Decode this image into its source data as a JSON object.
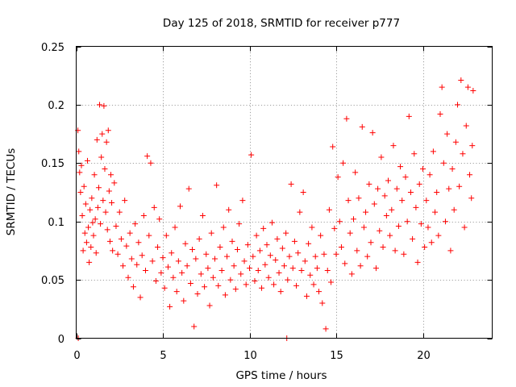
{
  "chart_data": {
    "type": "scatter",
    "title": "Day 125 of 2018, SRMTID for receiver p777",
    "xlabel": "GPS time / hours",
    "ylabel": "SRMTID / TECUs",
    "xlim": [
      0,
      24
    ],
    "ylim": [
      0,
      0.25
    ],
    "xticks": [
      0,
      5,
      10,
      15,
      20
    ],
    "xtick_labels": [
      "0",
      "5",
      "10",
      "15",
      "20"
    ],
    "yticks": [
      0,
      0.05,
      0.1,
      0.15,
      0.2,
      0.25
    ],
    "ytick_labels": [
      "0",
      "0.05",
      "0.1",
      "0.15",
      "0.2",
      "0.25"
    ],
    "grid": true,
    "marker": "+",
    "color": "#ff0000",
    "series": [
      {
        "name": "SRMTID",
        "points": [
          [
            0.1,
            0.178
          ],
          [
            0.15,
            0.16
          ],
          [
            0.2,
            0.142
          ],
          [
            0.25,
            0.125
          ],
          [
            0.3,
            0.148
          ],
          [
            0.35,
            0.105
          ],
          [
            0.4,
            0.075
          ],
          [
            0.45,
            0.13
          ],
          [
            0.5,
            0.09
          ],
          [
            0.55,
            0.115
          ],
          [
            0.6,
            0.082
          ],
          [
            0.65,
            0.152
          ],
          [
            0.7,
            0.095
          ],
          [
            0.75,
            0.065
          ],
          [
            0.8,
            0.11
          ],
          [
            0.85,
            0.078
          ],
          [
            0.9,
            0.12
          ],
          [
            0.95,
            0.099
          ],
          [
            1.0,
            0.088
          ],
          [
            1.05,
            0.14
          ],
          [
            1.1,
            0.102
          ],
          [
            1.15,
            0.073
          ],
          [
            1.2,
            0.17
          ],
          [
            1.25,
            0.112
          ],
          [
            1.3,
            0.129
          ],
          [
            1.35,
            0.2
          ],
          [
            1.4,
            0.098
          ],
          [
            1.45,
            0.155
          ],
          [
            1.5,
            0.175
          ],
          [
            1.55,
            0.118
          ],
          [
            1.6,
            0.199
          ],
          [
            1.65,
            0.145
          ],
          [
            1.7,
            0.108
          ],
          [
            1.75,
            0.168
          ],
          [
            1.8,
            0.093
          ],
          [
            1.85,
            0.178
          ],
          [
            1.9,
            0.126
          ],
          [
            1.95,
            0.083
          ],
          [
            2.0,
            0.14
          ],
          [
            2.05,
            0.116
          ],
          [
            2.1,
            0.075
          ],
          [
            2.2,
            0.133
          ],
          [
            2.3,
            0.096
          ],
          [
            2.4,
            0.072
          ],
          [
            2.5,
            0.108
          ],
          [
            2.6,
            0.085
          ],
          [
            2.7,
            0.062
          ],
          [
            2.8,
            0.118
          ],
          [
            2.9,
            0.079
          ],
          [
            3.0,
            0.052
          ],
          [
            3.1,
            0.09
          ],
          [
            3.2,
            0.068
          ],
          [
            3.3,
            0.044
          ],
          [
            3.4,
            0.098
          ],
          [
            3.5,
            0.063
          ],
          [
            3.6,
            0.082
          ],
          [
            3.7,
            0.035
          ],
          [
            3.8,
            0.071
          ],
          [
            3.9,
            0.105
          ],
          [
            4.0,
            0.058
          ],
          [
            4.1,
            0.156
          ],
          [
            4.2,
            0.088
          ],
          [
            4.3,
            0.15
          ],
          [
            4.4,
            0.066
          ],
          [
            4.5,
            0.112
          ],
          [
            4.6,
            0.049
          ],
          [
            4.7,
            0.078
          ],
          [
            4.8,
            0.102
          ],
          [
            4.9,
            0.056
          ],
          [
            5.0,
            0.069
          ],
          [
            5.1,
            0.043
          ],
          [
            5.2,
            0.088
          ],
          [
            5.3,
            0.061
          ],
          [
            5.4,
            0.027
          ],
          [
            5.5,
            0.073
          ],
          [
            5.6,
            0.052
          ],
          [
            5.7,
            0.095
          ],
          [
            5.8,
            0.04
          ],
          [
            5.9,
            0.066
          ],
          [
            6.0,
            0.113
          ],
          [
            6.1,
            0.056
          ],
          [
            6.2,
            0.032
          ],
          [
            6.3,
            0.081
          ],
          [
            6.4,
            0.062
          ],
          [
            6.5,
            0.128
          ],
          [
            6.6,
            0.047
          ],
          [
            6.7,
            0.076
          ],
          [
            6.8,
            0.01
          ],
          [
            6.9,
            0.068
          ],
          [
            7.0,
            0.038
          ],
          [
            7.1,
            0.085
          ],
          [
            7.2,
            0.055
          ],
          [
            7.3,
            0.105
          ],
          [
            7.4,
            0.044
          ],
          [
            7.5,
            0.072
          ],
          [
            7.6,
            0.06
          ],
          [
            7.7,
            0.028
          ],
          [
            7.8,
            0.09
          ],
          [
            7.9,
            0.052
          ],
          [
            8.0,
            0.068
          ],
          [
            8.1,
            0.131
          ],
          [
            8.2,
            0.045
          ],
          [
            8.3,
            0.078
          ],
          [
            8.4,
            0.058
          ],
          [
            8.5,
            0.095
          ],
          [
            8.6,
            0.037
          ],
          [
            8.7,
            0.07
          ],
          [
            8.8,
            0.11
          ],
          [
            8.9,
            0.05
          ],
          [
            9.0,
            0.083
          ],
          [
            9.1,
            0.062
          ],
          [
            9.2,
            0.042
          ],
          [
            9.3,
            0.076
          ],
          [
            9.4,
            0.098
          ],
          [
            9.5,
            0.055
          ],
          [
            9.6,
            0.118
          ],
          [
            9.7,
            0.066
          ],
          [
            9.8,
            0.046
          ],
          [
            9.9,
            0.08
          ],
          [
            10.0,
            0.06
          ],
          [
            10.1,
            0.157
          ],
          [
            10.2,
            0.07
          ],
          [
            10.3,
            0.049
          ],
          [
            10.4,
            0.088
          ],
          [
            10.5,
            0.058
          ],
          [
            10.6,
            0.075
          ],
          [
            10.7,
            0.043
          ],
          [
            10.8,
            0.094
          ],
          [
            10.9,
            0.063
          ],
          [
            11.0,
            0.08
          ],
          [
            11.1,
            0.052
          ],
          [
            11.2,
            0.071
          ],
          [
            11.3,
            0.099
          ],
          [
            11.4,
            0.046
          ],
          [
            11.5,
            0.067
          ],
          [
            11.6,
            0.085
          ],
          [
            11.7,
            0.056
          ],
          [
            11.8,
            0.04
          ],
          [
            11.9,
            0.077
          ],
          [
            12.0,
            0.062
          ],
          [
            12.1,
            0.09
          ],
          [
            12.2,
            0.05
          ],
          [
            12.3,
            0.07
          ],
          [
            12.4,
            0.132
          ],
          [
            12.5,
            0.06
          ],
          [
            12.6,
            0.083
          ],
          [
            12.7,
            0.045
          ],
          [
            12.8,
            0.073
          ],
          [
            12.9,
            0.108
          ],
          [
            13.0,
            0.058
          ],
          [
            13.1,
            0.125
          ],
          [
            13.2,
            0.066
          ],
          [
            13.3,
            0.036
          ],
          [
            13.4,
            0.081
          ],
          [
            13.5,
            0.054
          ],
          [
            13.6,
            0.095
          ],
          [
            13.7,
            0.046
          ],
          [
            13.8,
            0.07
          ],
          [
            13.9,
            0.06
          ],
          [
            14.0,
            0.04
          ],
          [
            14.1,
            0.088
          ],
          [
            14.2,
            0.03
          ],
          [
            14.3,
            0.072
          ],
          [
            14.4,
            0.008
          ],
          [
            14.5,
            0.058
          ],
          [
            14.6,
            0.11
          ],
          [
            14.7,
            0.048
          ],
          [
            14.8,
            0.164
          ],
          [
            14.9,
            0.094
          ],
          [
            15.0,
            0.072
          ],
          [
            15.1,
            0.138
          ],
          [
            15.2,
            0.1
          ],
          [
            15.3,
            0.078
          ],
          [
            15.4,
            0.15
          ],
          [
            15.5,
            0.064
          ],
          [
            15.6,
            0.188
          ],
          [
            15.7,
            0.118
          ],
          [
            15.8,
            0.09
          ],
          [
            15.9,
            0.055
          ],
          [
            16.0,
            0.102
          ],
          [
            16.1,
            0.142
          ],
          [
            16.2,
            0.075
          ],
          [
            16.3,
            0.12
          ],
          [
            16.4,
            0.062
          ],
          [
            16.5,
            0.181
          ],
          [
            16.6,
            0.095
          ],
          [
            16.7,
            0.108
          ],
          [
            16.8,
            0.07
          ],
          [
            16.9,
            0.132
          ],
          [
            17.0,
            0.082
          ],
          [
            17.1,
            0.176
          ],
          [
            17.2,
            0.115
          ],
          [
            17.3,
            0.06
          ],
          [
            17.4,
            0.128
          ],
          [
            17.5,
            0.092
          ],
          [
            17.6,
            0.155
          ],
          [
            17.7,
            0.078
          ],
          [
            17.8,
            0.122
          ],
          [
            17.9,
            0.105
          ],
          [
            18.0,
            0.135
          ],
          [
            18.1,
            0.088
          ],
          [
            18.2,
            0.11
          ],
          [
            18.3,
            0.165
          ],
          [
            18.4,
            0.075
          ],
          [
            18.5,
            0.128
          ],
          [
            18.6,
            0.096
          ],
          [
            18.7,
            0.147
          ],
          [
            18.8,
            0.118
          ],
          [
            18.9,
            0.072
          ],
          [
            19.0,
            0.138
          ],
          [
            19.1,
            0.1
          ],
          [
            19.2,
            0.19
          ],
          [
            19.3,
            0.125
          ],
          [
            19.4,
            0.085
          ],
          [
            19.5,
            0.158
          ],
          [
            19.6,
            0.112
          ],
          [
            19.7,
            0.065
          ],
          [
            19.8,
            0.132
          ],
          [
            19.9,
            0.098
          ],
          [
            20.0,
            0.145
          ],
          [
            20.1,
            0.078
          ],
          [
            20.2,
            0.118
          ],
          [
            20.3,
            0.095
          ],
          [
            20.4,
            0.14
          ],
          [
            20.5,
            0.082
          ],
          [
            20.6,
            0.16
          ],
          [
            20.7,
            0.108
          ],
          [
            20.8,
            0.125
          ],
          [
            20.9,
            0.088
          ],
          [
            21.0,
            0.192
          ],
          [
            21.1,
            0.215
          ],
          [
            21.2,
            0.15
          ],
          [
            21.3,
            0.1
          ],
          [
            21.4,
            0.175
          ],
          [
            21.5,
            0.128
          ],
          [
            21.6,
            0.075
          ],
          [
            21.7,
            0.145
          ],
          [
            21.8,
            0.11
          ],
          [
            21.9,
            0.168
          ],
          [
            22.0,
            0.2
          ],
          [
            22.1,
            0.13
          ],
          [
            22.2,
            0.221
          ],
          [
            22.3,
            0.158
          ],
          [
            22.4,
            0.095
          ],
          [
            22.5,
            0.182
          ],
          [
            22.6,
            0.215
          ],
          [
            22.7,
            0.14
          ],
          [
            22.8,
            0.12
          ],
          [
            22.85,
            0.165
          ],
          [
            22.9,
            0.212
          ],
          [
            0.12,
            0.0
          ],
          [
            12.15,
            0.0
          ]
        ]
      }
    ]
  }
}
